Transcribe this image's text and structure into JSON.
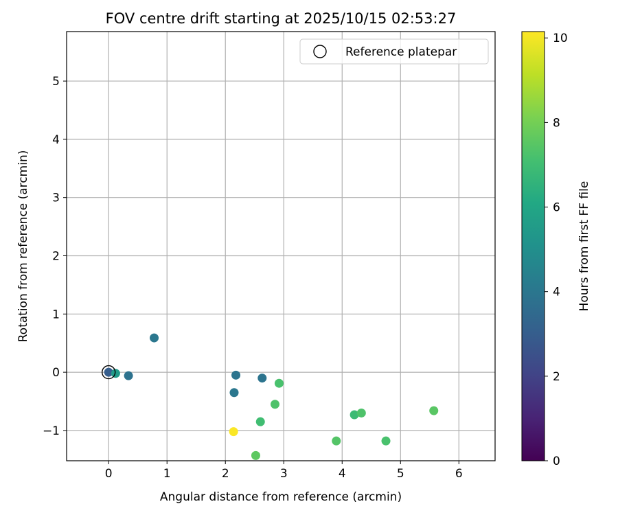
{
  "chart_data": {
    "type": "scatter",
    "title": "FOV centre drift starting at 2025/10/15 02:53:27",
    "xlabel": "Angular distance from reference (arcmin)",
    "ylabel": "Rotation from reference (arcmin)",
    "xlim": [
      -0.72,
      6.62
    ],
    "ylim": [
      -1.52,
      5.85
    ],
    "xticks": [
      0,
      1,
      2,
      3,
      4,
      5,
      6
    ],
    "yticks": [
      -1,
      0,
      1,
      2,
      3,
      4,
      5
    ],
    "grid": true,
    "legend": {
      "position": "top-right",
      "entries": [
        "Reference platepar"
      ]
    },
    "reference_point": {
      "x": 0,
      "y": 0,
      "label": "Reference platepar"
    },
    "colorbar": {
      "label": "Hours from first FF file",
      "colormap": "viridis",
      "range": [
        0,
        10.15
      ],
      "ticks": [
        0,
        2,
        4,
        6,
        8,
        10
      ]
    },
    "points": [
      {
        "x": 0.0,
        "y": 0.0,
        "hours": 3.0
      },
      {
        "x": 0.12,
        "y": -0.02,
        "hours": 5.5
      },
      {
        "x": 0.34,
        "y": -0.06,
        "hours": 3.8
      },
      {
        "x": 0.78,
        "y": 0.59,
        "hours": 4.0
      },
      {
        "x": 2.15,
        "y": -0.35,
        "hours": 4.0
      },
      {
        "x": 2.18,
        "y": -0.05,
        "hours": 3.9
      },
      {
        "x": 2.63,
        "y": -0.1,
        "hours": 3.9
      },
      {
        "x": 2.92,
        "y": -0.19,
        "hours": 7.2
      },
      {
        "x": 2.85,
        "y": -0.55,
        "hours": 7.3
      },
      {
        "x": 2.6,
        "y": -0.85,
        "hours": 7.0
      },
      {
        "x": 2.14,
        "y": -1.02,
        "hours": 10.1
      },
      {
        "x": 2.52,
        "y": -1.43,
        "hours": 7.6
      },
      {
        "x": 3.9,
        "y": -1.18,
        "hours": 7.4
      },
      {
        "x": 4.21,
        "y": -0.73,
        "hours": 6.9
      },
      {
        "x": 4.33,
        "y": -0.7,
        "hours": 7.3
      },
      {
        "x": 4.75,
        "y": -1.18,
        "hours": 7.2
      },
      {
        "x": 5.57,
        "y": -0.66,
        "hours": 7.5
      }
    ]
  }
}
